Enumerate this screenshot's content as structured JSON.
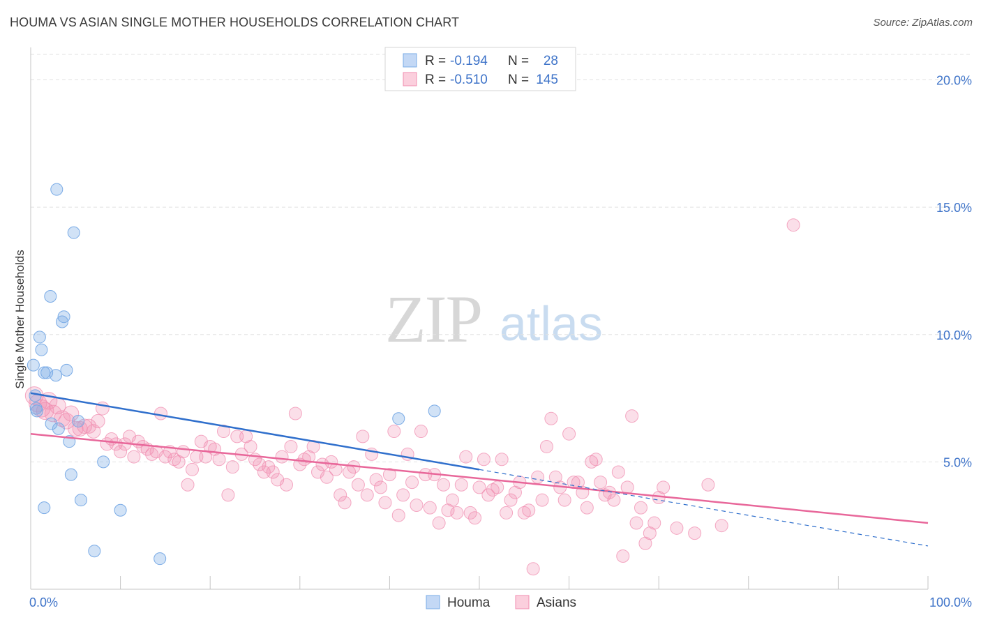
{
  "title": "HOUMA VS ASIAN SINGLE MOTHER HOUSEHOLDS CORRELATION CHART",
  "source": "Source: ZipAtlas.com",
  "watermark": {
    "zip": "ZIP",
    "atlas": "atlas"
  },
  "colors": {
    "houma": "#7aabe6",
    "asians": "#f08db0",
    "houma_line": "#2f6fcc",
    "asians_line": "#e8679a",
    "tick_text": "#3f74c9",
    "grid": "#e2e2e2"
  },
  "legend_top": [
    {
      "r_label": "R =",
      "r_value": "-0.194",
      "n_label": "N =",
      "n_value": "28"
    },
    {
      "r_label": "R =",
      "r_value": "-0.510",
      "n_label": "N =",
      "n_value": "145"
    }
  ],
  "legend_bottom": [
    "Houma",
    "Asians"
  ],
  "chart_data": {
    "type": "scatter",
    "title": "HOUMA VS ASIAN SINGLE MOTHER HOUSEHOLDS CORRELATION CHART",
    "xlabel": "",
    "ylabel": "Single Mother Households",
    "xlim": [
      0,
      100
    ],
    "ylim": [
      0,
      21
    ],
    "x_tick_labels": [
      "0.0%",
      "100.0%"
    ],
    "y_ticks": [
      5,
      10,
      15,
      20
    ],
    "y_tick_labels": [
      "5.0%",
      "10.0%",
      "15.0%",
      "20.0%"
    ],
    "grid": true,
    "legend_position": "top-center",
    "series": [
      {
        "name": "Houma",
        "R": -0.194,
        "N": 28,
        "trend": {
          "x": [
            0,
            50
          ],
          "y": [
            7.7,
            4.7
          ],
          "dashed_extension": {
            "x": [
              50,
              100
            ],
            "y": [
              4.7,
              1.7
            ]
          }
        },
        "points": [
          [
            0.3,
            8.8
          ],
          [
            0.5,
            7.6
          ],
          [
            0.6,
            7.1
          ],
          [
            0.7,
            7.0
          ],
          [
            1.0,
            9.9
          ],
          [
            1.2,
            9.4
          ],
          [
            1.5,
            8.5
          ],
          [
            1.8,
            8.5
          ],
          [
            2.2,
            11.5
          ],
          [
            2.3,
            6.5
          ],
          [
            2.8,
            8.4
          ],
          [
            2.9,
            15.7
          ],
          [
            3.1,
            6.3
          ],
          [
            3.5,
            10.5
          ],
          [
            3.7,
            10.7
          ],
          [
            4.0,
            8.6
          ],
          [
            4.3,
            5.8
          ],
          [
            4.5,
            4.5
          ],
          [
            4.8,
            14.0
          ],
          [
            5.3,
            6.6
          ],
          [
            5.6,
            3.5
          ],
          [
            1.5,
            3.2
          ],
          [
            7.1,
            1.5
          ],
          [
            8.1,
            5.0
          ],
          [
            10.0,
            3.1
          ],
          [
            14.4,
            1.2
          ],
          [
            41.0,
            6.7
          ],
          [
            45.0,
            7.0
          ]
        ]
      },
      {
        "name": "Asians",
        "R": -0.51,
        "N": 145,
        "trend": {
          "x": [
            0,
            100
          ],
          "y": [
            6.1,
            2.6
          ]
        },
        "points": [
          [
            0.4,
            7.6
          ],
          [
            0.8,
            7.3
          ],
          [
            1.2,
            7.1
          ],
          [
            1.6,
            7.0
          ],
          [
            2.0,
            7.4
          ],
          [
            2.5,
            6.9
          ],
          [
            3.0,
            7.2
          ],
          [
            3.5,
            6.7
          ],
          [
            4.0,
            6.6
          ],
          [
            4.5,
            6.9
          ],
          [
            5.0,
            6.3
          ],
          [
            5.5,
            6.3
          ],
          [
            6.0,
            6.4
          ],
          [
            6.5,
            6.4
          ],
          [
            7.0,
            6.2
          ],
          [
            7.5,
            6.6
          ],
          [
            8.0,
            7.1
          ],
          [
            8.5,
            5.7
          ],
          [
            9.0,
            5.9
          ],
          [
            9.5,
            5.7
          ],
          [
            10.0,
            5.4
          ],
          [
            10.5,
            5.7
          ],
          [
            11.0,
            6.0
          ],
          [
            11.5,
            5.2
          ],
          [
            12.0,
            5.8
          ],
          [
            12.5,
            5.6
          ],
          [
            13.0,
            5.5
          ],
          [
            13.5,
            5.3
          ],
          [
            14.0,
            5.4
          ],
          [
            14.5,
            6.9
          ],
          [
            15.0,
            5.2
          ],
          [
            15.5,
            5.4
          ],
          [
            16.0,
            5.1
          ],
          [
            16.5,
            5.0
          ],
          [
            17.0,
            5.4
          ],
          [
            17.5,
            4.1
          ],
          [
            18.0,
            4.7
          ],
          [
            18.5,
            5.2
          ],
          [
            19.0,
            5.8
          ],
          [
            19.5,
            5.2
          ],
          [
            20.0,
            5.6
          ],
          [
            20.5,
            5.5
          ],
          [
            21.0,
            5.1
          ],
          [
            21.5,
            6.2
          ],
          [
            22.0,
            3.7
          ],
          [
            22.5,
            4.8
          ],
          [
            23.0,
            6.0
          ],
          [
            23.5,
            5.3
          ],
          [
            24.0,
            6.0
          ],
          [
            24.5,
            5.6
          ],
          [
            25.0,
            5.1
          ],
          [
            25.5,
            4.9
          ],
          [
            26.0,
            4.6
          ],
          [
            26.5,
            4.8
          ],
          [
            27.0,
            4.6
          ],
          [
            27.5,
            4.3
          ],
          [
            28.0,
            5.2
          ],
          [
            28.5,
            4.1
          ],
          [
            29.0,
            5.6
          ],
          [
            29.5,
            6.9
          ],
          [
            30.0,
            4.9
          ],
          [
            30.5,
            5.1
          ],
          [
            31.0,
            5.2
          ],
          [
            31.5,
            5.6
          ],
          [
            32.0,
            4.6
          ],
          [
            32.5,
            4.9
          ],
          [
            33.0,
            4.4
          ],
          [
            33.5,
            5.0
          ],
          [
            34.0,
            4.7
          ],
          [
            34.5,
            3.7
          ],
          [
            35.0,
            3.4
          ],
          [
            35.5,
            4.6
          ],
          [
            36.0,
            4.8
          ],
          [
            36.5,
            4.1
          ],
          [
            37.0,
            6.0
          ],
          [
            37.5,
            3.7
          ],
          [
            38.0,
            5.3
          ],
          [
            38.5,
            4.3
          ],
          [
            39.0,
            4.0
          ],
          [
            39.5,
            3.4
          ],
          [
            40.0,
            4.5
          ],
          [
            40.5,
            6.2
          ],
          [
            41.0,
            2.9
          ],
          [
            41.5,
            3.7
          ],
          [
            42.0,
            5.3
          ],
          [
            42.5,
            4.2
          ],
          [
            43.0,
            3.3
          ],
          [
            43.5,
            6.2
          ],
          [
            44.0,
            4.5
          ],
          [
            44.5,
            3.2
          ],
          [
            45.0,
            4.5
          ],
          [
            45.5,
            2.6
          ],
          [
            46.0,
            4.1
          ],
          [
            46.5,
            3.1
          ],
          [
            47.0,
            3.5
          ],
          [
            47.5,
            3.0
          ],
          [
            48.0,
            4.1
          ],
          [
            48.5,
            5.2
          ],
          [
            49.0,
            3.0
          ],
          [
            49.5,
            2.8
          ],
          [
            50.0,
            4.0
          ],
          [
            50.5,
            5.1
          ],
          [
            51.0,
            3.7
          ],
          [
            51.5,
            3.9
          ],
          [
            52.0,
            4.0
          ],
          [
            52.5,
            5.1
          ],
          [
            53.0,
            3.0
          ],
          [
            53.5,
            3.5
          ],
          [
            54.0,
            3.8
          ],
          [
            54.5,
            4.2
          ],
          [
            55.0,
            3.0
          ],
          [
            55.5,
            3.1
          ],
          [
            56.0,
            0.8
          ],
          [
            56.5,
            4.4
          ],
          [
            57.0,
            3.5
          ],
          [
            57.5,
            5.6
          ],
          [
            58.0,
            6.7
          ],
          [
            58.5,
            4.4
          ],
          [
            59.0,
            4.0
          ],
          [
            59.5,
            3.5
          ],
          [
            60.0,
            6.1
          ],
          [
            60.5,
            4.2
          ],
          [
            61.0,
            4.2
          ],
          [
            61.5,
            3.8
          ],
          [
            62.0,
            3.2
          ],
          [
            62.5,
            5.0
          ],
          [
            63.0,
            5.1
          ],
          [
            63.5,
            4.2
          ],
          [
            64.0,
            3.7
          ],
          [
            64.5,
            3.8
          ],
          [
            65.0,
            3.5
          ],
          [
            65.5,
            4.6
          ],
          [
            66.0,
            1.3
          ],
          [
            66.5,
            4.0
          ],
          [
            67.0,
            6.8
          ],
          [
            67.5,
            2.6
          ],
          [
            68.0,
            3.2
          ],
          [
            68.5,
            1.8
          ],
          [
            69.0,
            2.2
          ],
          [
            69.5,
            2.6
          ],
          [
            70.0,
            3.6
          ],
          [
            70.5,
            4.0
          ],
          [
            72.0,
            2.4
          ],
          [
            74.0,
            2.2
          ],
          [
            75.5,
            4.1
          ],
          [
            77.0,
            2.5
          ],
          [
            85.0,
            14.3
          ]
        ]
      }
    ]
  }
}
